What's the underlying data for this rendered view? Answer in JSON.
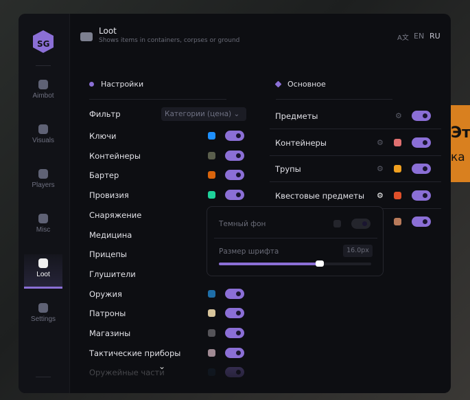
{
  "background_banner": {
    "line1": "Эт",
    "line2": "ка"
  },
  "sidebar": {
    "items": [
      {
        "label": "Aimbot",
        "icon": "alien-icon"
      },
      {
        "label": "Visuals",
        "icon": "vr-glasses-icon"
      },
      {
        "label": "Players",
        "icon": "users-icon"
      },
      {
        "label": "Misc",
        "icon": "dots-icon"
      },
      {
        "label": "Loot",
        "icon": "toolbox-icon",
        "active": true
      },
      {
        "label": "Settings",
        "icon": "list-icon"
      }
    ]
  },
  "header": {
    "title": "Loot",
    "subtitle": "Shows items in containers, corpses or ground",
    "lang": [
      "EN",
      "RU"
    ],
    "active_lang": "RU"
  },
  "settings": {
    "title": "Настройки",
    "filter_label": "Фильтр",
    "filter_value": "Категории (цена)",
    "items": [
      {
        "label": "Ключи",
        "color": "#1e90ff",
        "on": true
      },
      {
        "label": "Контейнеры",
        "color": "#5a5e4c",
        "on": true
      },
      {
        "label": "Бартер",
        "color": "#d9640c",
        "on": true
      },
      {
        "label": "Провизия",
        "color": "#1ed19a",
        "on": true
      },
      {
        "label": "Снаряжение"
      },
      {
        "label": "Медицина"
      },
      {
        "label": "Прицепы"
      },
      {
        "label": "Глушители"
      },
      {
        "label": "Оружия",
        "color": "#1e6ea8",
        "on": true
      },
      {
        "label": "Патроны",
        "color": "#d8c59c",
        "on": true
      },
      {
        "label": "Магазины",
        "color": "#555459",
        "on": true
      },
      {
        "label": "Тактические приборы",
        "color": "#a08a94",
        "on": true
      },
      {
        "label": "Оружейные части",
        "color": "#1a2d45",
        "on": true
      }
    ]
  },
  "main": {
    "title": "Основное",
    "items": [
      {
        "label": "Предметы",
        "on": true
      },
      {
        "label": "Контейнеры",
        "color": "#e07070",
        "on": true
      },
      {
        "label": "Трупы",
        "color": "#f0a020",
        "on": true
      },
      {
        "label": "Квестовые предметы",
        "color": "#e0502a",
        "on": true
      },
      {
        "label": "",
        "color": "#b87a5a",
        "on": true
      }
    ]
  },
  "popup": {
    "dark_bg_label": "Темный фон",
    "dark_bg_on": false,
    "font_size_label": "Размер шрифта",
    "font_size_value": "16.0px",
    "font_size_fraction": 0.66
  },
  "colors": {
    "accent": "#8b6fd6"
  }
}
